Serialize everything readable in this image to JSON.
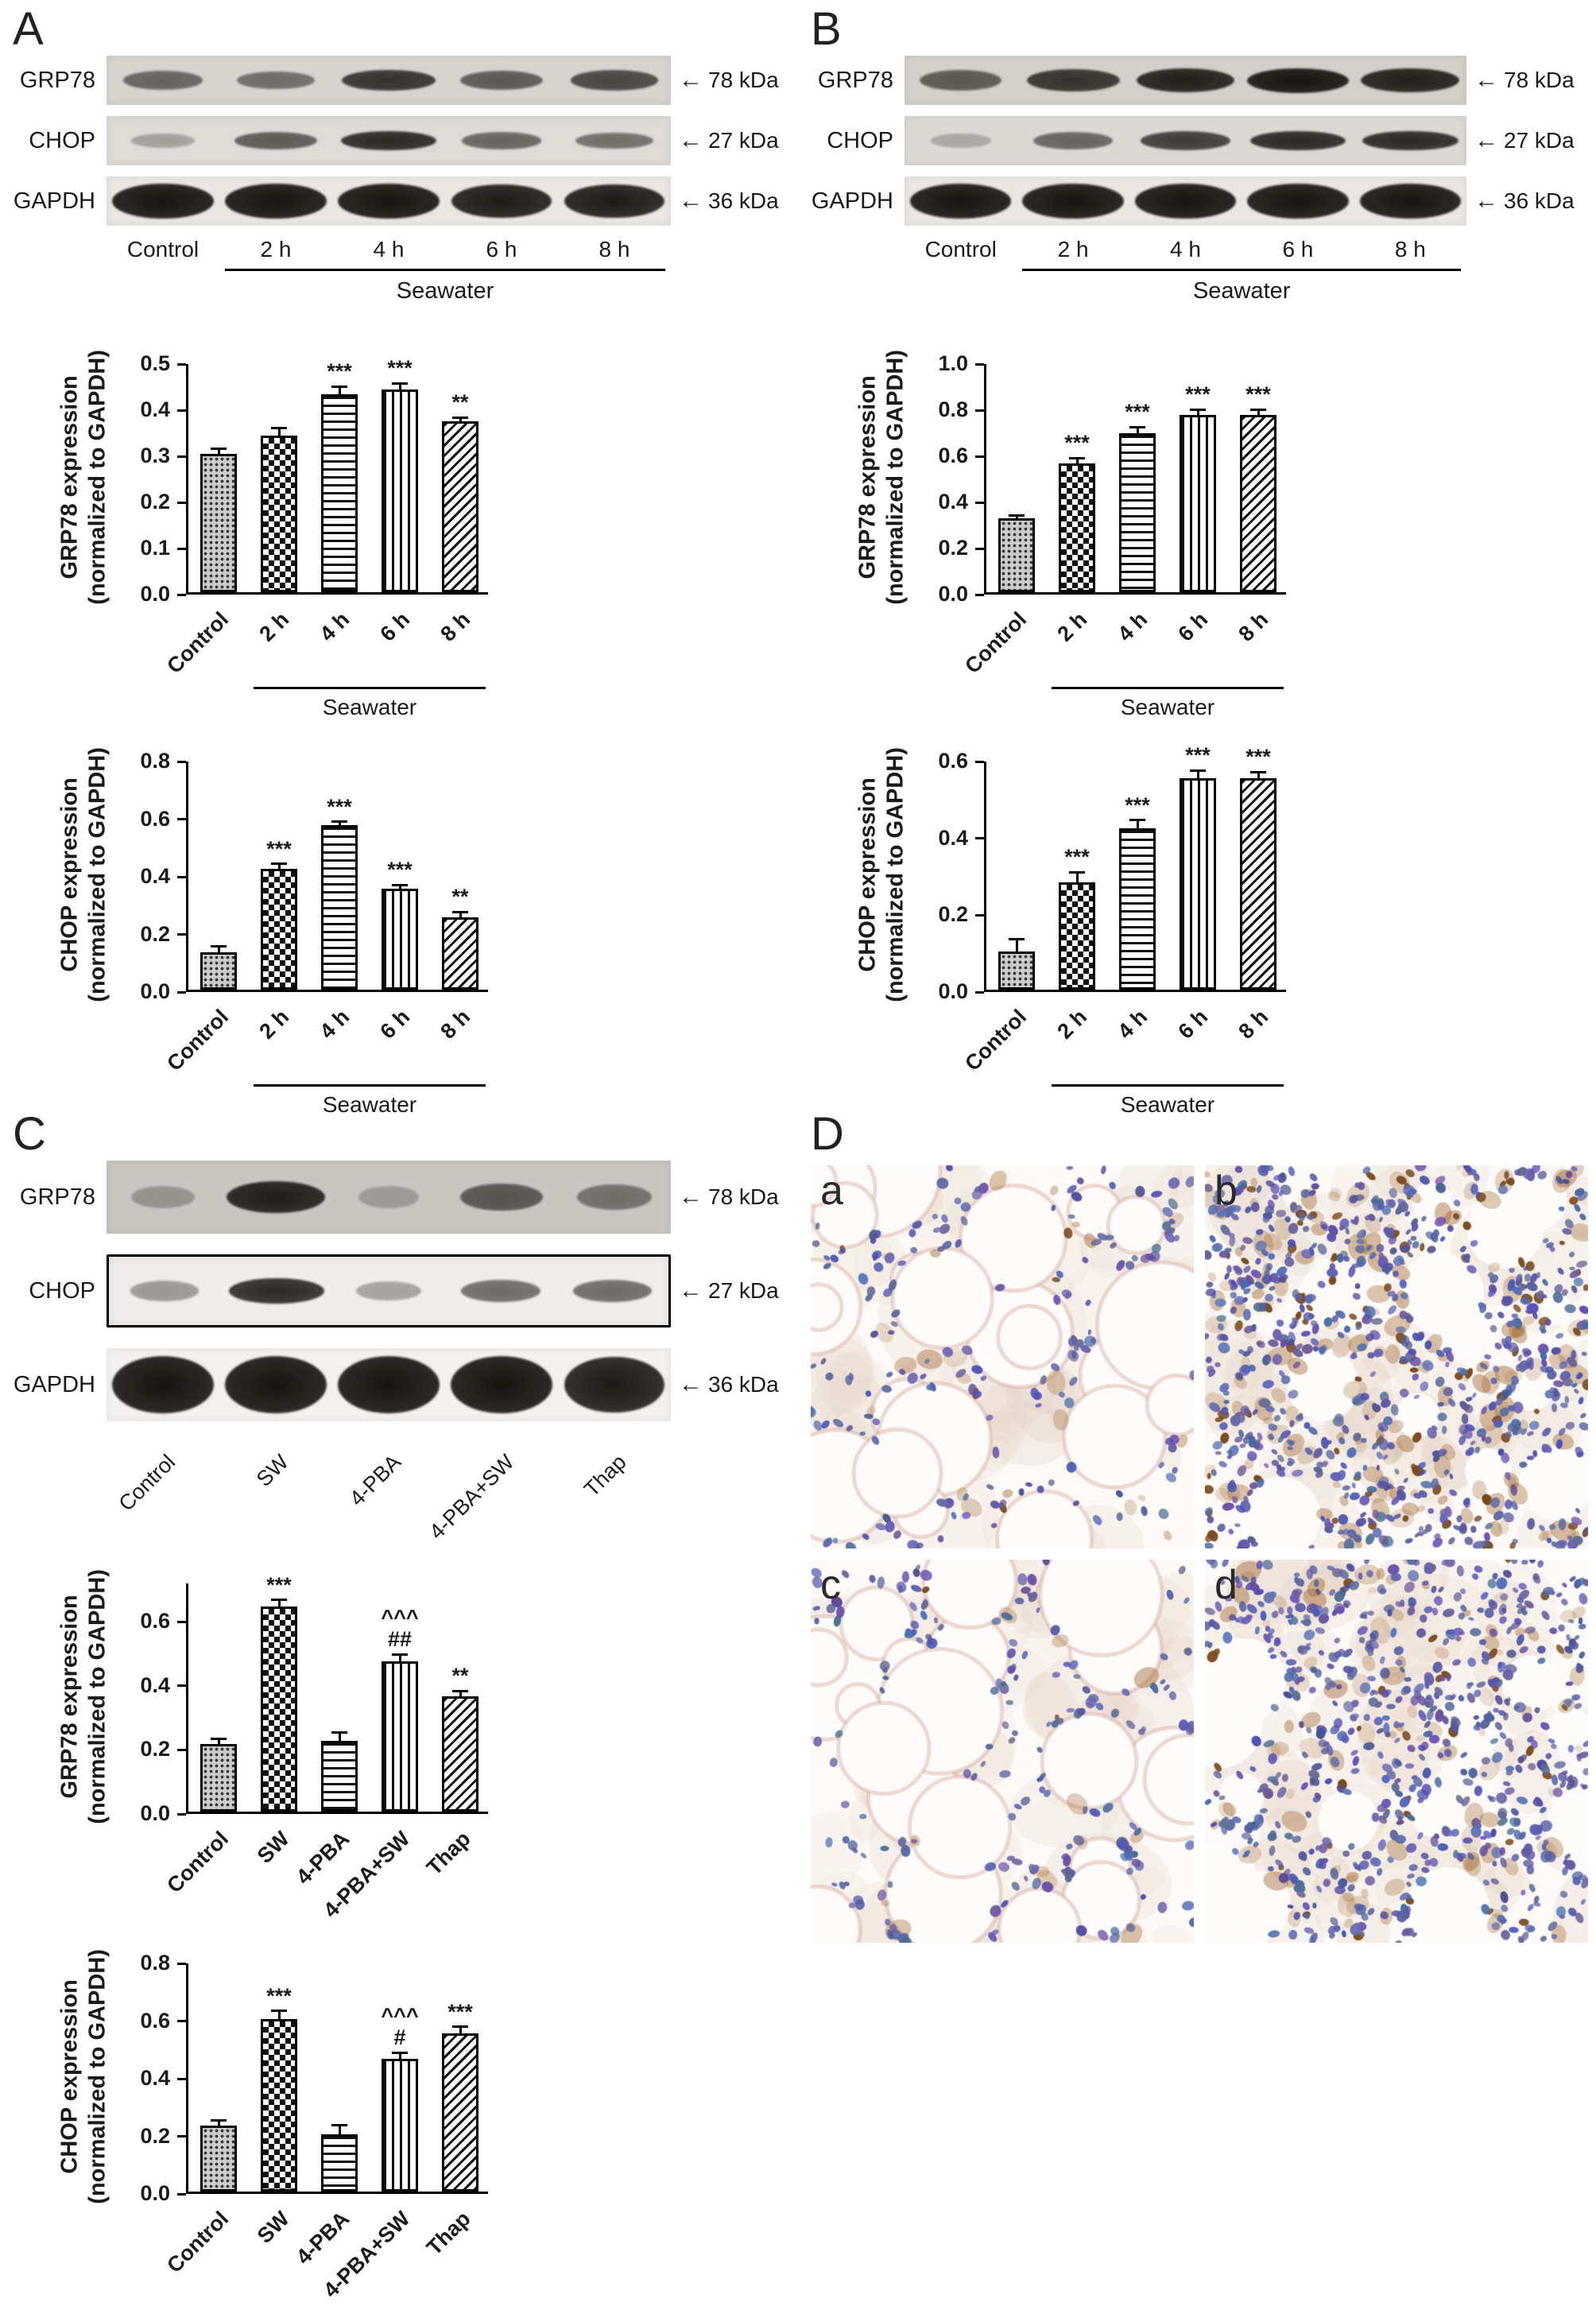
{
  "panels": {
    "A": {
      "label": "A",
      "blot": {
        "lane_labels": [
          "Control",
          "2 h",
          "4 h",
          "6 h",
          "8 h"
        ],
        "rotated_labels": false,
        "group": {
          "label": "Seawater",
          "from": 1,
          "to": 4
        },
        "rows": [
          {
            "protein": "GRP78",
            "kda": "78 kDa",
            "bg": "#d7d3cf",
            "band_scale": 0.46,
            "bands": [
              0.6,
              0.55,
              0.85,
              0.65,
              0.75
            ]
          },
          {
            "protein": "CHOP",
            "kda": "27 kDa",
            "bg": "#dedad6",
            "band_scale": 0.42,
            "bands": [
              0.3,
              0.65,
              0.9,
              0.6,
              0.55
            ]
          },
          {
            "protein": "GAPDH",
            "kda": "36 kDa",
            "bg": "#eae7e3",
            "band_scale": 0.7,
            "bands": [
              1.0,
              1.0,
              1.0,
              0.97,
              0.97
            ]
          }
        ]
      }
    },
    "B": {
      "label": "B",
      "blot": {
        "lane_labels": [
          "Control",
          "2 h",
          "4 h",
          "6 h",
          "8 h"
        ],
        "rotated_labels": false,
        "group": {
          "label": "Seawater",
          "from": 1,
          "to": 4
        },
        "rows": [
          {
            "protein": "GRP78",
            "kda": "78 kDa",
            "bg": "#d3cfca",
            "band_scale": 0.5,
            "bands": [
              0.65,
              0.85,
              0.95,
              1.0,
              0.95
            ]
          },
          {
            "protein": "CHOP",
            "kda": "27 kDa",
            "bg": "#dcd8d4",
            "band_scale": 0.42,
            "bands": [
              0.25,
              0.6,
              0.8,
              0.9,
              0.9
            ]
          },
          {
            "protein": "GAPDH",
            "kda": "36 kDa",
            "bg": "#eae7e3",
            "band_scale": 0.7,
            "bands": [
              1.0,
              1.0,
              1.0,
              1.0,
              1.0
            ]
          }
        ]
      }
    },
    "C": {
      "label": "C",
      "blot": {
        "lane_labels": [
          "Control",
          "SW",
          "4-PBA",
          "4-PBA+SW",
          "Thap"
        ],
        "rotated_labels": true,
        "rows": [
          {
            "protein": "GRP78",
            "kda": "78 kDa",
            "bg": "#c9c5c1",
            "band_scale": 0.45,
            "bands": [
              0.3,
              0.95,
              0.25,
              0.65,
              0.5
            ]
          },
          {
            "protein": "CHOP",
            "kda": "27 kDa",
            "bg": "#efecea",
            "band_scale": 0.4,
            "boxed": true,
            "bands": [
              0.4,
              0.9,
              0.35,
              0.6,
              0.6
            ]
          },
          {
            "protein": "GAPDH",
            "kda": "36 kDa",
            "bg": "#f3f1ef",
            "band_scale": 0.78,
            "bands": [
              1.0,
              1.0,
              1.0,
              1.0,
              0.97
            ]
          }
        ]
      }
    },
    "D": {
      "label": "D",
      "images": [
        {
          "label": "a"
        },
        {
          "label": "b"
        },
        {
          "label": "c"
        },
        {
          "label": "d"
        }
      ]
    }
  },
  "chart_data": [
    {
      "type": "bar",
      "panel": "A",
      "ylabel_lines": [
        "GRP78 expression",
        "(normalized to GAPDH)"
      ],
      "categories": [
        "Control",
        "2 h",
        "4 h",
        "6 h",
        "8 h"
      ],
      "values": [
        0.3,
        0.34,
        0.43,
        0.44,
        0.37
      ],
      "errors": [
        0.01,
        0.015,
        0.015,
        0.012,
        0.008
      ],
      "sig": [
        "",
        "",
        "***",
        "***",
        "**"
      ],
      "ylim": [
        0,
        0.5
      ],
      "yticks": [
        "0.0",
        "0.1",
        "0.2",
        "0.3",
        "0.4",
        "0.5"
      ],
      "group": {
        "label": "Seawater",
        "from": 1,
        "to": 4
      }
    },
    {
      "type": "bar",
      "panel": "A",
      "ylabel_lines": [
        "CHOP expression",
        "(normalized to GAPDH)"
      ],
      "categories": [
        "Control",
        "2 h",
        "4 h",
        "6 h",
        "8 h"
      ],
      "values": [
        0.13,
        0.42,
        0.57,
        0.35,
        0.25
      ],
      "errors": [
        0.02,
        0.015,
        0.012,
        0.012,
        0.018
      ],
      "sig": [
        "",
        "***",
        "***",
        "***",
        "**"
      ],
      "ylim": [
        0,
        0.8
      ],
      "yticks": [
        "0.0",
        "0.2",
        "0.4",
        "0.6",
        "0.8"
      ],
      "group": {
        "label": "Seawater",
        "from": 1,
        "to": 4
      }
    },
    {
      "type": "bar",
      "panel": "B",
      "ylabel_lines": [
        "GRP78 expression",
        "(normalized to GAPDH)"
      ],
      "categories": [
        "Control",
        "2 h",
        "4 h",
        "6 h",
        "8 h"
      ],
      "values": [
        0.32,
        0.56,
        0.69,
        0.77,
        0.77
      ],
      "errors": [
        0.012,
        0.02,
        0.025,
        0.02,
        0.02
      ],
      "sig": [
        "",
        "***",
        "***",
        "***",
        "***"
      ],
      "ylim": [
        0,
        1.0
      ],
      "yticks": [
        "0.0",
        "0.2",
        "0.4",
        "0.6",
        "0.8",
        "1.0"
      ],
      "group": {
        "label": "Seawater",
        "from": 1,
        "to": 4
      }
    },
    {
      "type": "bar",
      "panel": "B",
      "ylabel_lines": [
        "CHOP expression",
        "(normalized to GAPDH)"
      ],
      "categories": [
        "Control",
        "2 h",
        "4 h",
        "6 h",
        "8 h"
      ],
      "values": [
        0.1,
        0.28,
        0.42,
        0.55,
        0.55
      ],
      "errors": [
        0.03,
        0.025,
        0.02,
        0.02,
        0.015
      ],
      "sig": [
        "",
        "***",
        "***",
        "***",
        "***"
      ],
      "ylim": [
        0,
        0.6
      ],
      "yticks": [
        "0.0",
        "0.2",
        "0.4",
        "0.6"
      ],
      "group": {
        "label": "Seawater",
        "from": 1,
        "to": 4
      }
    },
    {
      "type": "bar",
      "panel": "C",
      "ylabel_lines": [
        "GRP78 expression",
        "(normalized to GAPDH)"
      ],
      "categories": [
        "Control",
        "SW",
        "4-PBA",
        "4-PBA+SW",
        "Thap"
      ],
      "values": [
        0.21,
        0.64,
        0.22,
        0.47,
        0.36
      ],
      "errors": [
        0.015,
        0.02,
        0.025,
        0.02,
        0.015
      ],
      "sig": [
        "",
        "***",
        "",
        "^^^\n##",
        "**"
      ],
      "ylim": [
        0,
        0.72
      ],
      "yticks": [
        "0.0",
        "0.2",
        "0.4",
        "0.6"
      ]
    },
    {
      "type": "bar",
      "panel": "C",
      "ylabel_lines": [
        "CHOP expression",
        "(normalized to GAPDH)"
      ],
      "categories": [
        "Control",
        "SW",
        "4-PBA",
        "4-PBA+SW",
        "Thap"
      ],
      "values": [
        0.23,
        0.6,
        0.2,
        0.46,
        0.55
      ],
      "errors": [
        0.015,
        0.025,
        0.03,
        0.02,
        0.02
      ],
      "sig": [
        "",
        "***",
        "",
        "^^^\n#",
        "***"
      ],
      "ylim": [
        0,
        0.8
      ],
      "yticks": [
        "0.0",
        "0.2",
        "0.4",
        "0.6",
        "0.8"
      ]
    }
  ]
}
